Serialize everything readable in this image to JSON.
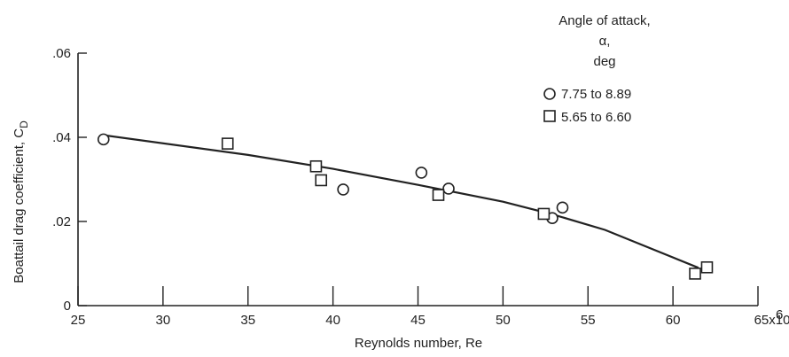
{
  "chart_data": {
    "type": "scatter",
    "xlabel": "Reynolds number, Re",
    "ylabel": "Boattail drag coefficient, C",
    "ylabel_subscript": "D",
    "xlim": [
      25,
      65
    ],
    "ylim": [
      0,
      0.06
    ],
    "x_ticks": [
      25,
      30,
      35,
      40,
      45,
      50,
      55,
      60,
      65
    ],
    "x_tick_labels": [
      "25",
      "30",
      "35",
      "40",
      "45",
      "50",
      "55",
      "60",
      "65x10"
    ],
    "x_exponent_label": "6",
    "y_ticks": [
      0,
      0.02,
      0.04,
      0.06
    ],
    "y_tick_labels": [
      "0",
      ".02",
      ".04",
      ".06"
    ],
    "grid": false,
    "legend": {
      "placement": "top-right",
      "title_lines": [
        "Angle of attack,",
        "α,",
        "deg"
      ]
    },
    "series": [
      {
        "name": "7.75 to 8.89",
        "marker": "circle",
        "points": [
          [
            26.5,
            0.0395
          ],
          [
            40.6,
            0.0276
          ],
          [
            45.2,
            0.0316
          ],
          [
            46.8,
            0.0278
          ],
          [
            52.9,
            0.0208
          ],
          [
            53.5,
            0.0233
          ]
        ]
      },
      {
        "name": "5.65 to 6.60",
        "marker": "square",
        "points": [
          [
            33.8,
            0.0385
          ],
          [
            39.0,
            0.0331
          ],
          [
            39.3,
            0.0298
          ],
          [
            46.2,
            0.0263
          ],
          [
            52.4,
            0.0218
          ],
          [
            61.3,
            0.0076
          ],
          [
            62.0,
            0.0091
          ]
        ]
      }
    ],
    "fit_line": {
      "points": [
        [
          26.5,
          0.0405
        ],
        [
          35.0,
          0.0358
        ],
        [
          40.0,
          0.0325
        ],
        [
          45.0,
          0.0287
        ],
        [
          50.0,
          0.0247
        ],
        [
          52.9,
          0.0217
        ],
        [
          56.0,
          0.018
        ],
        [
          61.5,
          0.009
        ]
      ]
    }
  }
}
